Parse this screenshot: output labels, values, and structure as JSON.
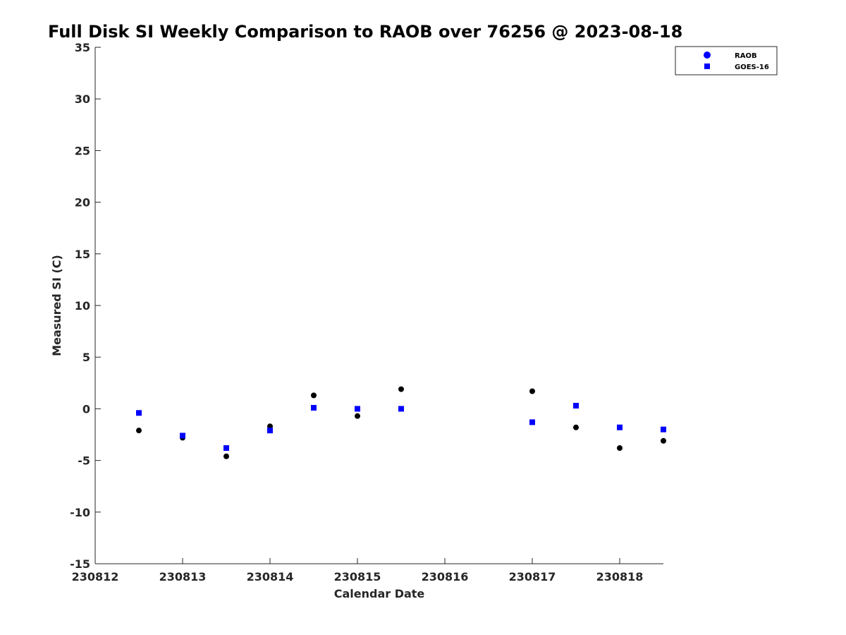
{
  "chart_data": {
    "type": "scatter",
    "title": "Full Disk SI Weekly Comparison to RAOB over 76256 @ 2023-08-18",
    "xlabel": "Calendar Date",
    "ylabel": "Measured SI (C)",
    "xlim": [
      "2023-08-12T00:00",
      "2023-08-18T12:00"
    ],
    "ylim": [
      -15,
      35
    ],
    "x_ticks": [
      "2023-08-12",
      "2023-08-13",
      "2023-08-14",
      "2023-08-15",
      "2023-08-16",
      "2023-08-17",
      "2023-08-18"
    ],
    "x_tick_labels": [
      "230812",
      "230813",
      "230814",
      "230815",
      "230816",
      "230817",
      "230818"
    ],
    "y_ticks": [
      -15,
      -10,
      -5,
      0,
      5,
      10,
      15,
      20,
      25,
      30,
      35
    ],
    "y_tick_labels": [
      "-15",
      "-10",
      "-5",
      "0",
      "5",
      "10",
      "15",
      "20",
      "25",
      "30",
      "35"
    ],
    "grid": false,
    "legend_position": "top-right",
    "series": [
      {
        "name": "RAOB",
        "marker": "circle",
        "legend_color": "#0000ff",
        "point_color": "#000000",
        "x": [
          "2023-08-12T12:00",
          "2023-08-13T00:00",
          "2023-08-13T12:00",
          "2023-08-14T00:00",
          "2023-08-14T12:00",
          "2023-08-15T00:00",
          "2023-08-15T12:00",
          "2023-08-17T00:00",
          "2023-08-17T12:00",
          "2023-08-18T00:00",
          "2023-08-18T12:00"
        ],
        "y": [
          -2.1,
          -2.8,
          -4.6,
          -1.7,
          1.3,
          -0.7,
          1.9,
          1.7,
          -1.8,
          -3.8,
          -3.1
        ]
      },
      {
        "name": "GOES-16",
        "marker": "square",
        "legend_color": "#0000ff",
        "point_color": "#0000ff",
        "x": [
          "2023-08-12T12:00",
          "2023-08-13T00:00",
          "2023-08-13T12:00",
          "2023-08-14T00:00",
          "2023-08-14T12:00",
          "2023-08-15T00:00",
          "2023-08-15T12:00",
          "2023-08-17T00:00",
          "2023-08-17T12:00",
          "2023-08-18T00:00",
          "2023-08-18T12:00"
        ],
        "y": [
          -0.4,
          -2.6,
          -3.8,
          -2.1,
          0.1,
          0.0,
          0.0,
          -1.3,
          0.3,
          -1.8,
          -2.0
        ]
      }
    ]
  }
}
